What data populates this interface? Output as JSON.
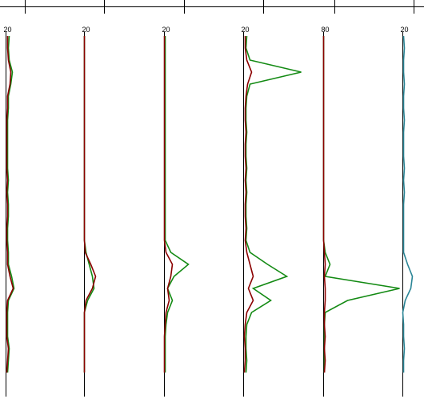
{
  "chart_data": [
    {
      "type": "line",
      "label": "20",
      "xlim": [
        0,
        100
      ],
      "series": [
        {
          "color": "#138a13",
          "values": [
            4,
            3,
            4,
            8,
            6,
            3,
            3,
            2,
            2,
            2,
            2,
            2,
            3,
            2,
            3,
            3,
            2,
            2,
            3,
            3,
            7,
            10,
            3,
            2,
            2,
            2,
            4,
            3,
            2
          ]
        },
        {
          "color": "#8b0000",
          "values": [
            2,
            2,
            3,
            6,
            5,
            2,
            2,
            1,
            1,
            1,
            1,
            1,
            2,
            1,
            2,
            2,
            1,
            1,
            2,
            2,
            5,
            9,
            2,
            1,
            1,
            1,
            3,
            2,
            1
          ]
        }
      ]
    },
    {
      "type": "line",
      "label": "20",
      "xlim": [
        0,
        100
      ],
      "series": [
        {
          "color": "#138a13",
          "values": [
            0,
            0,
            0,
            0,
            0,
            0,
            0,
            0,
            0,
            0,
            0,
            0,
            0,
            0,
            0,
            0,
            0,
            0,
            2,
            6,
            10,
            12,
            4,
            0,
            0,
            0,
            0,
            0,
            0
          ]
        },
        {
          "color": "#8b0000",
          "values": [
            0,
            0,
            0,
            0,
            0,
            0,
            0,
            0,
            0,
            0,
            0,
            0,
            0,
            0,
            0,
            0,
            0,
            0,
            1,
            8,
            14,
            10,
            2,
            0,
            0,
            0,
            0,
            0,
            0
          ]
        }
      ]
    },
    {
      "type": "line",
      "label": "20",
      "xlim": [
        0,
        100
      ],
      "series": [
        {
          "color": "#138a13",
          "values": [
            1,
            1,
            1,
            1,
            1,
            1,
            1,
            1,
            1,
            1,
            1,
            1,
            1,
            1,
            1,
            1,
            1,
            1,
            8,
            30,
            12,
            4,
            10,
            4,
            2,
            1,
            1,
            1,
            1
          ]
        },
        {
          "color": "#8b0000",
          "values": [
            0,
            0,
            0,
            0,
            0,
            0,
            0,
            0,
            0,
            0,
            0,
            0,
            0,
            0,
            0,
            0,
            0,
            0,
            2,
            10,
            8,
            4,
            6,
            2,
            1,
            0,
            0,
            0,
            0
          ]
        }
      ]
    },
    {
      "type": "line",
      "label": "20",
      "xlim": [
        0,
        100
      ],
      "series": [
        {
          "color": "#138a13",
          "values": [
            4,
            3,
            8,
            72,
            8,
            4,
            3,
            3,
            4,
            3,
            3,
            4,
            3,
            4,
            3,
            3,
            4,
            3,
            8,
            30,
            54,
            12,
            34,
            10,
            4,
            3,
            3,
            4,
            3
          ]
        },
        {
          "color": "#8b0000",
          "values": [
            2,
            2,
            4,
            10,
            5,
            3,
            2,
            2,
            3,
            2,
            2,
            3,
            2,
            3,
            2,
            2,
            3,
            2,
            4,
            8,
            12,
            6,
            12,
            4,
            2,
            1,
            2,
            2,
            1
          ]
        }
      ]
    },
    {
      "type": "line",
      "label": "80",
      "xlim": [
        0,
        100
      ],
      "series": [
        {
          "color": "#138a13",
          "values": [
            0,
            0,
            0,
            0,
            0,
            0,
            0,
            0,
            0,
            0,
            0,
            0,
            0,
            0,
            0,
            0,
            0,
            0,
            2,
            8,
            2,
            95,
            30,
            2,
            1,
            1,
            1,
            1,
            1
          ]
        },
        {
          "color": "#8b0000",
          "values": [
            0,
            0,
            0,
            0,
            0,
            0,
            0,
            0,
            0,
            0,
            0,
            0,
            0,
            0,
            0,
            0,
            0,
            0,
            1,
            2,
            1,
            2,
            2,
            1,
            1,
            2,
            1,
            2,
            1
          ]
        }
      ]
    },
    {
      "type": "line",
      "label": "20",
      "xlim": [
        0,
        100
      ],
      "series": [
        {
          "color": "#2a8596",
          "values": [
            1,
            2,
            1,
            1,
            2,
            1,
            1,
            2,
            1,
            1,
            1,
            2,
            1,
            2,
            1,
            1,
            1,
            1,
            1,
            6,
            12,
            10,
            3,
            0,
            1,
            1,
            2,
            1,
            1
          ]
        }
      ]
    }
  ]
}
